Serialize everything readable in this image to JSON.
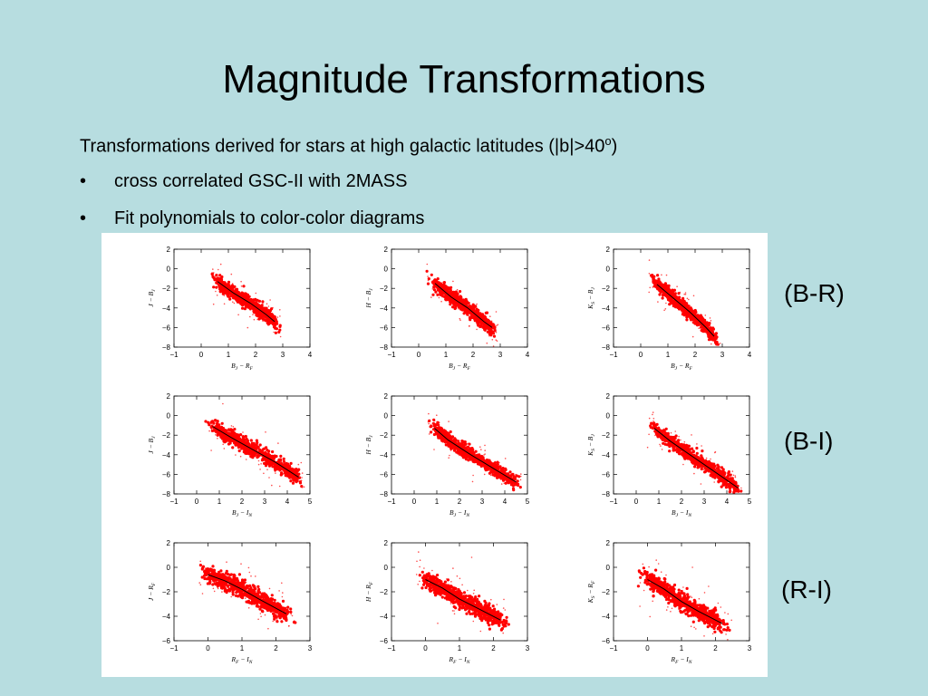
{
  "slide": {
    "title": "Magnitude Transformations",
    "intro_text": "Transformations derived for stars at high galactic latitudes (|b|>40",
    "intro_sup": "o",
    "intro_close": ")",
    "bullets": [
      "cross correlated GSC-II with 2MASS",
      "Fit polynomials to color-color diagrams"
    ],
    "bullet_symbol": "•"
  },
  "row_labels": [
    "(B-R)",
    "(B-I)",
    "(R-I)"
  ],
  "colors": {
    "background": "#b7dde0",
    "points": "#ff0000",
    "fit_line": "#000000"
  },
  "chart_data": [
    {
      "type": "scatter",
      "row": "(B-R)",
      "xlabel": "B_J − R_F",
      "ylabel": "J − B_J",
      "xlim": [
        -1,
        4
      ],
      "ylim": [
        -8,
        2
      ],
      "xticks": [
        -1,
        0,
        1,
        2,
        3,
        4
      ],
      "yticks": [
        2,
        0,
        -2,
        -4,
        -6,
        -8
      ],
      "fit": {
        "x": [
          0.6,
          1.2,
          1.8,
          2.4,
          2.7
        ],
        "y": [
          -1.3,
          -2.5,
          -3.5,
          -4.7,
          -5.4
        ]
      }
    },
    {
      "type": "scatter",
      "row": "(B-R)",
      "xlabel": "B_J − R_F",
      "ylabel": "H − B_J",
      "xlim": [
        -1,
        4
      ],
      "ylim": [
        -8,
        2
      ],
      "xticks": [
        -1,
        0,
        1,
        2,
        3,
        4
      ],
      "yticks": [
        2,
        0,
        -2,
        -4,
        -6,
        -8
      ],
      "fit": {
        "x": [
          0.6,
          1.2,
          1.8,
          2.4,
          2.7
        ],
        "y": [
          -1.5,
          -2.9,
          -4.0,
          -5.4,
          -6.0
        ]
      }
    },
    {
      "type": "scatter",
      "row": "(B-R)",
      "xlabel": "B_J − R_F",
      "ylabel": "K_S − B_J",
      "xlim": [
        -1,
        4
      ],
      "ylim": [
        -8,
        2
      ],
      "xticks": [
        -1,
        0,
        1,
        2,
        3,
        4
      ],
      "yticks": [
        2,
        0,
        -2,
        -4,
        -6,
        -8
      ],
      "fit": {
        "x": [
          0.6,
          1.2,
          1.8,
          2.4,
          2.7
        ],
        "y": [
          -1.6,
          -3.0,
          -4.4,
          -6.0,
          -6.9
        ]
      }
    },
    {
      "type": "scatter",
      "row": "(B-I)",
      "xlabel": "B_J − I_N",
      "ylabel": "J − B_J",
      "xlim": [
        -1,
        5
      ],
      "ylim": [
        -8,
        2
      ],
      "xticks": [
        -1,
        0,
        1,
        2,
        3,
        4,
        5
      ],
      "yticks": [
        2,
        0,
        -2,
        -4,
        -6,
        -8
      ],
      "fit": {
        "x": [
          0.7,
          1.5,
          2.5,
          3.5,
          4.5
        ],
        "y": [
          -1.1,
          -2.2,
          -3.5,
          -4.8,
          -6.3
        ]
      }
    },
    {
      "type": "scatter",
      "row": "(B-I)",
      "xlabel": "B_J − I_N",
      "ylabel": "H − B_J",
      "xlim": [
        -1,
        5
      ],
      "ylim": [
        -8,
        2
      ],
      "xticks": [
        -1,
        0,
        1,
        2,
        3,
        4,
        5
      ],
      "yticks": [
        2,
        0,
        -2,
        -4,
        -6,
        -8
      ],
      "fit": {
        "x": [
          0.9,
          1.5,
          2.5,
          3.5,
          4.5
        ],
        "y": [
          -1.3,
          -2.5,
          -4.0,
          -5.4,
          -6.8
        ]
      }
    },
    {
      "type": "scatter",
      "row": "(B-I)",
      "xlabel": "B_J − I_N",
      "ylabel": "K_S − B_J",
      "xlim": [
        -1,
        5
      ],
      "ylim": [
        -8,
        2
      ],
      "xticks": [
        -1,
        0,
        1,
        2,
        3,
        4,
        5
      ],
      "yticks": [
        2,
        0,
        -2,
        -4,
        -6,
        -8
      ],
      "fit": {
        "x": [
          0.8,
          1.5,
          2.5,
          3.5,
          4.5
        ],
        "y": [
          -1.3,
          -2.6,
          -4.2,
          -5.8,
          -7.4
        ]
      }
    },
    {
      "type": "scatter",
      "row": "(R-I)",
      "xlabel": "R_F − I_N",
      "ylabel": "J − R_F",
      "xlim": [
        -1,
        3
      ],
      "ylim": [
        -6,
        2
      ],
      "xticks": [
        -1,
        0,
        1,
        2,
        3
      ],
      "yticks": [
        2,
        0,
        -2,
        -4,
        -6
      ],
      "fit": {
        "x": [
          0.0,
          0.5,
          1.0,
          1.5,
          2.3
        ],
        "y": [
          -0.6,
          -1.1,
          -1.8,
          -2.6,
          -3.8
        ]
      }
    },
    {
      "type": "scatter",
      "row": "(R-I)",
      "xlabel": "R_F − I_N",
      "ylabel": "H − R_F",
      "xlim": [
        -1,
        3
      ],
      "ylim": [
        -6,
        2
      ],
      "xticks": [
        -1,
        0,
        1,
        2,
        3
      ],
      "yticks": [
        2,
        0,
        -2,
        -4,
        -6
      ],
      "fit": {
        "x": [
          0.0,
          0.5,
          1.0,
          1.5,
          2.2
        ],
        "y": [
          -1.0,
          -1.7,
          -2.6,
          -3.3,
          -4.3
        ]
      }
    },
    {
      "type": "scatter",
      "row": "(R-I)",
      "xlabel": "R_F − I_N",
      "ylabel": "K_S − R_F",
      "xlim": [
        -1,
        3
      ],
      "ylim": [
        -6,
        2
      ],
      "xticks": [
        -1,
        0,
        1,
        2,
        3
      ],
      "yticks": [
        2,
        0,
        -2,
        -4,
        -6
      ],
      "fit": {
        "x": [
          0.0,
          0.5,
          1.0,
          1.5,
          2.2
        ],
        "y": [
          -1.0,
          -1.8,
          -2.8,
          -3.6,
          -4.6
        ]
      }
    }
  ]
}
